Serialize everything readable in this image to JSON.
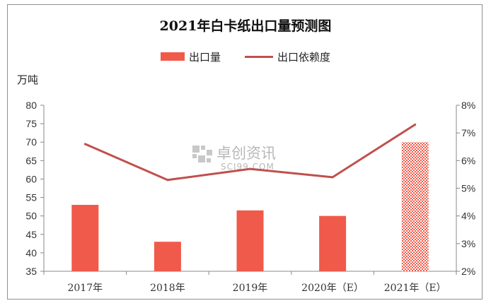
{
  "chart_data": {
    "type": "bar+line",
    "title": "2021年白卡纸出口量预测图",
    "categories": [
      "2017年",
      "2018年",
      "2019年",
      "2020年（E）",
      "2021年（E）"
    ],
    "series": [
      {
        "name": "出口量",
        "type": "bar",
        "axis": "left",
        "values": [
          53,
          43,
          51.5,
          50,
          70
        ],
        "color": "#f05a4a"
      },
      {
        "name": "出口依赖度",
        "type": "line",
        "axis": "right",
        "values": [
          6.6,
          5.3,
          5.7,
          5.4,
          7.3
        ],
        "color": "#c0504d"
      }
    ],
    "y_left": {
      "label": "万吨",
      "min": 35,
      "max": 80,
      "step": 5
    },
    "y_right": {
      "min": 2,
      "max": 8,
      "step": 1,
      "unit": "%"
    },
    "forecast_hatched_index": 4,
    "legend_position": "top-center",
    "grid": false
  },
  "watermark": {
    "cn": "卓创资讯",
    "en": "SCI99.COM"
  }
}
